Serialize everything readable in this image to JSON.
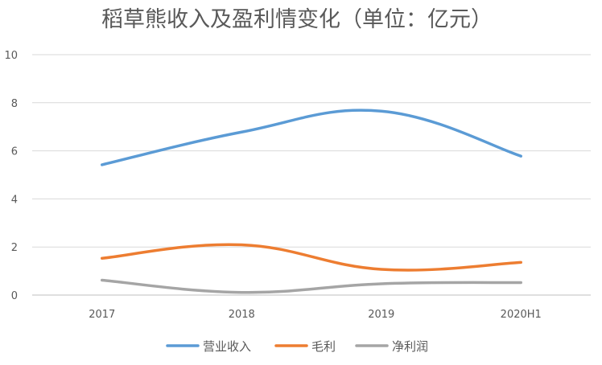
{
  "chart_data": {
    "type": "line",
    "title": "稻草熊收入及盈利情变化（单位：亿元）",
    "categories": [
      "2017",
      "2018",
      "2019",
      "2020H1"
    ],
    "ylim": [
      0,
      10
    ],
    "yticks": [
      "0",
      "2",
      "4",
      "6",
      "8",
      "10"
    ],
    "grid": true,
    "smooth": true,
    "legend_position": "bottom",
    "series": [
      {
        "name": "营业收入",
        "values": [
          5.42,
          6.78,
          7.65,
          5.78
        ],
        "color": "#5B9BD5"
      },
      {
        "name": "毛利",
        "values": [
          1.53,
          2.09,
          1.07,
          1.36
        ],
        "color": "#ED7D31"
      },
      {
        "name": "净利润",
        "values": [
          0.62,
          0.11,
          0.47,
          0.52
        ],
        "color": "#A5A5A5"
      }
    ]
  }
}
